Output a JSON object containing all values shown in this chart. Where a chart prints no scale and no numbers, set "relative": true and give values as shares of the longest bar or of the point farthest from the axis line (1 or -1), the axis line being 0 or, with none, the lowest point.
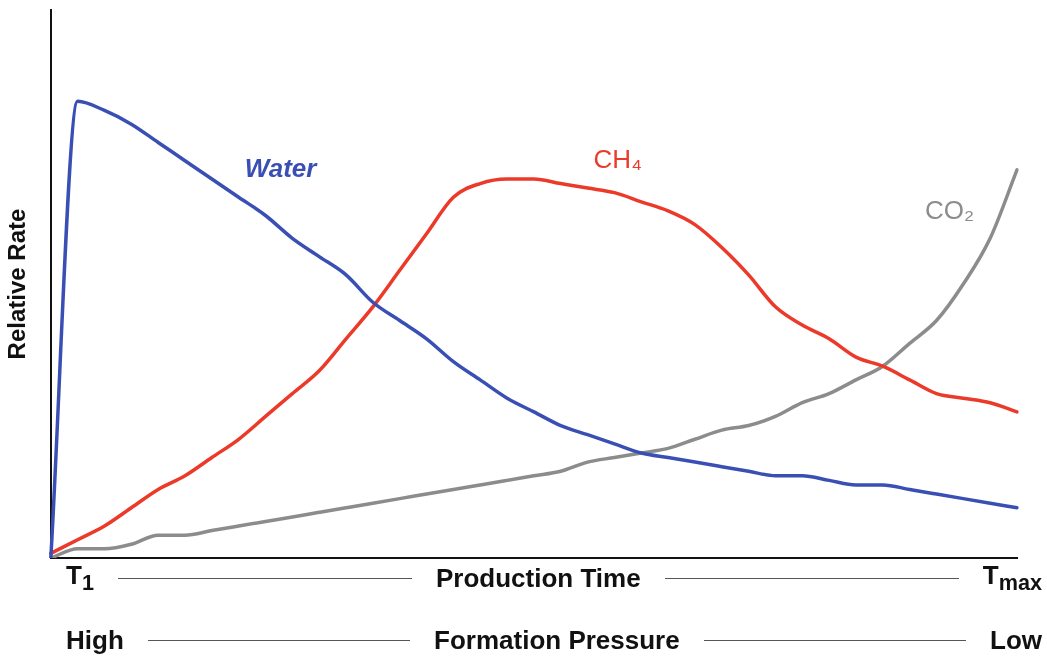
{
  "chart_data": {
    "type": "line",
    "relative": true,
    "ylabel": "Relative Rate",
    "xlabel": "Production Time",
    "categories": [
      null,
      null,
      null,
      null,
      null,
      null,
      null,
      null,
      null,
      null,
      null,
      null,
      null,
      null,
      null,
      null,
      null,
      null,
      null,
      null,
      null,
      null,
      null,
      null,
      null,
      null,
      null,
      null,
      null,
      null,
      null,
      null,
      null,
      null,
      null,
      null,
      null
    ],
    "series": [
      {
        "name": "Water",
        "color": "#3a4fb4",
        "values": [
          0,
          1,
          0.98,
          0.95,
          0.91,
          0.87,
          0.83,
          0.79,
          0.75,
          0.7,
          0.66,
          0.62,
          0.56,
          0.52,
          0.48,
          0.43,
          0.39,
          0.35,
          0.32,
          0.29,
          0.27,
          0.25,
          0.23,
          0.22,
          0.21,
          0.2,
          0.19,
          0.18,
          0.18,
          0.17,
          0.16,
          0.16,
          0.15,
          0.14,
          0.13,
          0.12,
          0.11
        ]
      },
      {
        "name": "CH₄",
        "color": "#ec3a2a",
        "values": [
          0.01,
          0.04,
          0.07,
          0.11,
          0.15,
          0.18,
          0.22,
          0.26,
          0.31,
          0.36,
          0.41,
          0.48,
          0.55,
          0.63,
          0.71,
          0.79,
          0.82,
          0.83,
          0.83,
          0.82,
          0.81,
          0.8,
          0.78,
          0.76,
          0.73,
          0.68,
          0.62,
          0.55,
          0.51,
          0.48,
          0.44,
          0.42,
          0.39,
          0.36,
          0.35,
          0.34,
          0.32
        ]
      },
      {
        "name": "CO₂",
        "color": "#8c8c8c",
        "values": [
          0,
          0.02,
          0.02,
          0.03,
          0.05,
          0.05,
          0.06,
          0.07,
          0.08,
          0.09,
          0.1,
          0.11,
          0.12,
          0.13,
          0.14,
          0.15,
          0.16,
          0.17,
          0.18,
          0.19,
          0.21,
          0.22,
          0.23,
          0.24,
          0.26,
          0.28,
          0.29,
          0.31,
          0.34,
          0.36,
          0.39,
          0.42,
          0.47,
          0.52,
          0.6,
          0.7,
          0.85
        ]
      }
    ],
    "annotations": [
      "T$_{1}$",
      "T$_{max}$",
      "High",
      "Formation Pressure",
      "Low"
    ],
    "legend": false,
    "line_style": "solid"
  }
}
